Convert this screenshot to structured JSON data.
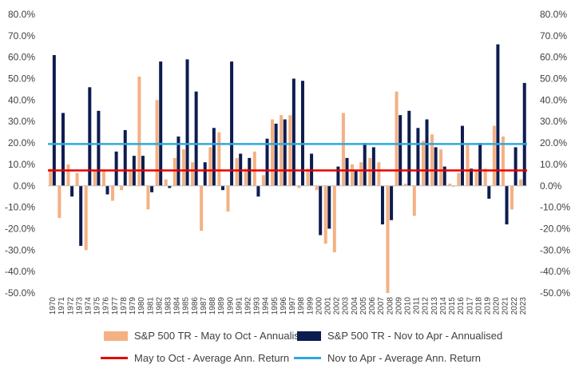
{
  "chart_data": {
    "type": "bar",
    "title": "",
    "xlabel": "",
    "ylabel": "",
    "ylim": [
      -50,
      80
    ],
    "y_ticks": [
      "-50.0%",
      "-40.0%",
      "-30.0%",
      "-20.0%",
      "-10.0%",
      "0.0%",
      "10.0%",
      "20.0%",
      "30.0%",
      "40.0%",
      "50.0%",
      "60.0%",
      "70.0%",
      "80.0%"
    ],
    "grid": false,
    "legend_position": "bottom",
    "categories": [
      "1970",
      "1971",
      "1972",
      "1973",
      "1974",
      "1975",
      "1976",
      "1977",
      "1978",
      "1979",
      "1980",
      "1981",
      "1982",
      "1983",
      "1984",
      "1985",
      "1986",
      "1987",
      "1988",
      "1989",
      "1990",
      "1991",
      "1992",
      "1993",
      "1994",
      "1995",
      "1996",
      "1997",
      "1998",
      "1999",
      "2000",
      "2001",
      "2002",
      "2003",
      "2004",
      "2005",
      "2006",
      "2007",
      "2008",
      "2009",
      "2010",
      "2011",
      "2012",
      "2013",
      "2014",
      "2015",
      "2016",
      "2017",
      "2018",
      "2019",
      "2020",
      "2021",
      "2022",
      "2023"
    ],
    "series": [
      {
        "name": "S&P 500 TR - May to Oct - Annualised",
        "color": "#F4B183",
        "values": [
          8,
          -15,
          10,
          6,
          -30,
          7,
          7,
          -7,
          -2,
          7,
          51,
          -11,
          40,
          3,
          13,
          17,
          11,
          -21,
          18,
          25,
          -12,
          13,
          8,
          16,
          5,
          31,
          33,
          33,
          -1,
          8,
          -2,
          -27,
          -31,
          34,
          10,
          11,
          13,
          11,
          -50,
          44,
          1,
          -14,
          21,
          24,
          17,
          1,
          6,
          19,
          7,
          8,
          28,
          23,
          -11,
          3
        ]
      },
      {
        "name": "S&P 500 TR - Nov to Apr - Annualised",
        "color": "#0D1C4F",
        "values": [
          61,
          34,
          -5,
          -28,
          46,
          35,
          -4,
          16,
          26,
          14,
          14,
          -3,
          58,
          -1,
          23,
          59,
          44,
          11,
          27,
          -2,
          58,
          15,
          13,
          -5,
          22,
          29,
          31,
          50,
          49,
          15,
          -23,
          -20,
          9,
          13,
          7,
          20,
          18,
          -18,
          -16,
          33,
          35,
          27,
          31,
          18,
          9,
          0,
          28,
          8,
          20,
          -6,
          66,
          -18,
          18,
          48
        ]
      }
    ],
    "reference_lines": [
      {
        "name": "May to Oct - Average Ann. Return",
        "color": "#E60000",
        "value": 7.2
      },
      {
        "name": "Nov to Apr - Average Ann. Return",
        "color": "#2FA8E0",
        "value": 19.5
      }
    ]
  }
}
